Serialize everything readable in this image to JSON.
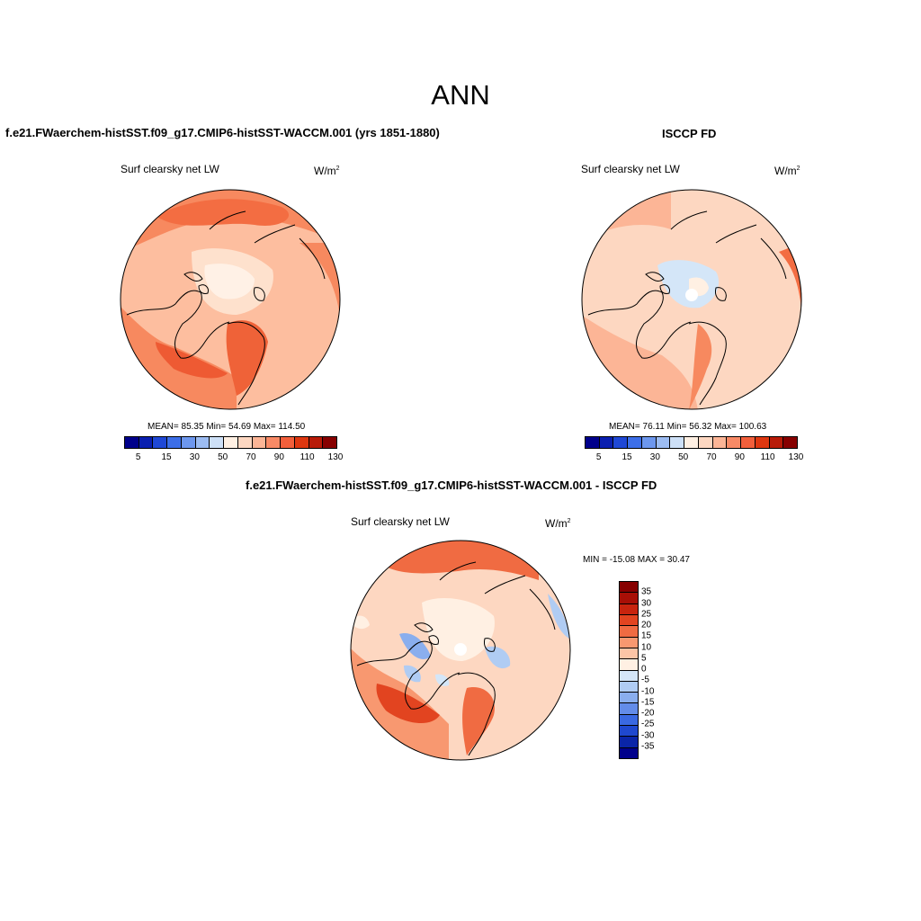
{
  "page_title": "ANN",
  "panels": [
    {
      "title": "f.e21.FWaerchem-histSST.f09_g17.CMIP6-histSST-WACCM.001 (yrs 1851-1880)",
      "variable": "Surf clearsky net LW",
      "units": "W/m",
      "units_sup": "2",
      "stats": "MEAN=  85.35  Min=  54.69  Max= 114.50"
    },
    {
      "title": "ISCCP FD",
      "variable": "Surf clearsky net LW",
      "units": "W/m",
      "units_sup": "2",
      "stats": "MEAN=  76.11  Min=  56.32  Max= 100.63"
    },
    {
      "title": "f.e21.FWaerchem-histSST.f09_g17.CMIP6-histSST-WACCM.001 - ISCCP FD",
      "variable": "Surf clearsky net LW",
      "units": "W/m",
      "units_sup": "2",
      "stats": "MIN = -15.08 MAX =  30.47"
    }
  ],
  "colorbar_main": {
    "colors": [
      "#00008b",
      "#0a1fb0",
      "#1f48d6",
      "#3c6ee8",
      "#6d97ee",
      "#9cbcf2",
      "#cde0f7",
      "#fff0e3",
      "#fdd7c1",
      "#fcb596",
      "#f88a66",
      "#f25f3b",
      "#de3710",
      "#b81b08",
      "#870000"
    ],
    "tick_labels": [
      "5",
      "15",
      "30",
      "50",
      "70",
      "90",
      "110",
      "130"
    ]
  },
  "colorbar_diff": {
    "colors": [
      "#870000",
      "#a80f06",
      "#c8240e",
      "#e24420",
      "#f06b42",
      "#f89870",
      "#fcc4a6",
      "#fff0e3",
      "#d4e6f8",
      "#b0ccf3",
      "#8aaeee",
      "#638ce9",
      "#3a69e2",
      "#1f48cf",
      "#0a25a8",
      "#00008b"
    ],
    "tick_labels": [
      "35",
      "30",
      "25",
      "20",
      "15",
      "10",
      "5",
      "0",
      "-5",
      "-10",
      "-15",
      "-20",
      "-25",
      "-30",
      "-35"
    ]
  }
}
